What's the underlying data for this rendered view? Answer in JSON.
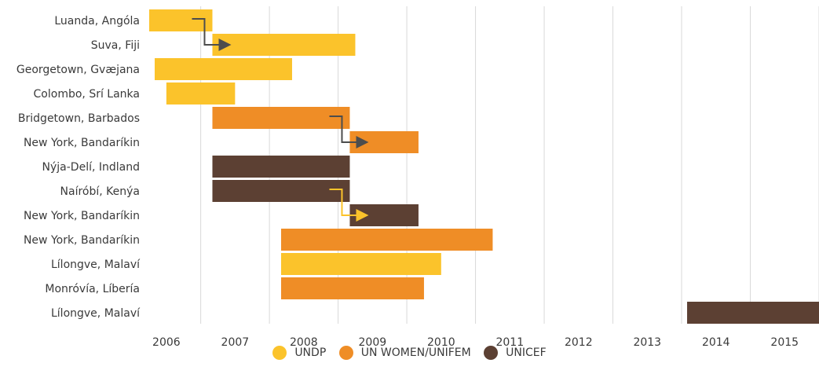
{
  "chart_data": {
    "type": "gantt",
    "xlim": [
      2005.75,
      2015.5
    ],
    "x_ticks": [
      "2006",
      "2007",
      "2008",
      "2009",
      "2010",
      "2011",
      "2012",
      "2013",
      "2014",
      "2015"
    ],
    "grid": "vertical",
    "legend_position": "bottom-center",
    "series": [
      {
        "name": "UNDP",
        "color": "#fbc32b"
      },
      {
        "name": "UN WOMEN/UNIFEM",
        "color": "#ef8d26"
      },
      {
        "name": "UNICEF",
        "color": "#5c4033"
      }
    ],
    "rows": [
      {
        "label": "Luanda, Angóla",
        "series": "UNDP",
        "start": 2005.75,
        "end": 2006.67
      },
      {
        "label": "Suva, Fiji",
        "series": "UNDP",
        "start": 2006.67,
        "end": 2008.75
      },
      {
        "label": "Georgetown, Gvæjana",
        "series": "UNDP",
        "start": 2005.83,
        "end": 2007.83
      },
      {
        "label": "Colombo, Srí Lanka",
        "series": "UNDP",
        "start": 2006.0,
        "end": 2007.0
      },
      {
        "label": "Bridgetown, Barbados",
        "series": "UN WOMEN/UNIFEM",
        "start": 2006.67,
        "end": 2008.67
      },
      {
        "label": "New York, Bandaríkin",
        "series": "UN WOMEN/UNIFEM",
        "start": 2008.67,
        "end": 2009.67
      },
      {
        "label": "Nýja-Delí, Indland",
        "series": "UNICEF",
        "start": 2006.67,
        "end": 2008.67
      },
      {
        "label": "Naíróbí, Kenýa",
        "series": "UNICEF",
        "start": 2006.67,
        "end": 2008.67
      },
      {
        "label": "New York, Bandaríkin",
        "series": "UNICEF",
        "start": 2008.67,
        "end": 2009.67
      },
      {
        "label": "New York, Bandaríkin",
        "series": "UN WOMEN/UNIFEM",
        "start": 2007.67,
        "end": 2010.75
      },
      {
        "label": "Lílongve, Malaví",
        "series": "UNDP",
        "start": 2007.67,
        "end": 2010.0
      },
      {
        "label": "Monróvía, Líbería",
        "series": "UN WOMEN/UNIFEM",
        "start": 2007.67,
        "end": 2009.75
      },
      {
        "label": "Lílongve, Malaví",
        "series": "UNICEF",
        "start": 2013.58,
        "end": 2015.5
      }
    ],
    "transitions": [
      {
        "from_row": 0,
        "to_row": 1,
        "color": "#4d4d4d"
      },
      {
        "from_row": 4,
        "to_row": 5,
        "color": "#4d4d4d"
      },
      {
        "from_row": 7,
        "to_row": 8,
        "color": "#fbc32b"
      }
    ]
  }
}
